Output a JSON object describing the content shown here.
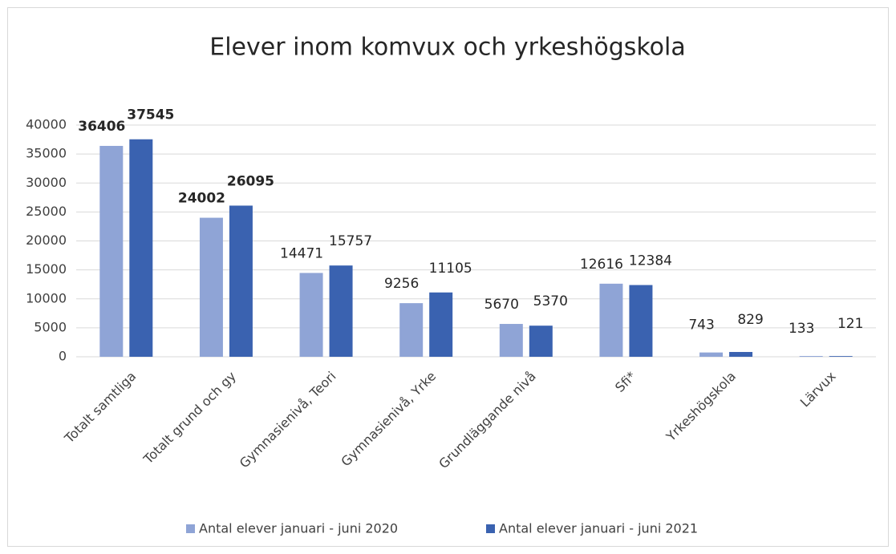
{
  "chart_data": {
    "type": "bar",
    "title": "Elever inom komvux och yrkeshögskola",
    "categories": [
      "Totalt samtliga",
      "Totalt grund och gy",
      "Gymnasienivå, Teori",
      "Gymnasienivå, Yrke",
      "Grundläggande nivå",
      "Sfi*",
      "Yrkeshögskola",
      "Lärvux"
    ],
    "series": [
      {
        "name": "Antal elever januari - juni 2020",
        "color": "#8fa4d6",
        "values": [
          36406,
          24002,
          14471,
          9256,
          5670,
          12616,
          743,
          133
        ]
      },
      {
        "name": "Antal elever januari - juni 2021",
        "color": "#3a62b0",
        "values": [
          37545,
          26095,
          15757,
          11105,
          5370,
          12384,
          829,
          121
        ]
      }
    ],
    "ylim": [
      0,
      40000
    ],
    "yticks": [
      0,
      5000,
      10000,
      15000,
      20000,
      25000,
      30000,
      35000,
      40000
    ],
    "grid": true,
    "legend": "bottom"
  }
}
